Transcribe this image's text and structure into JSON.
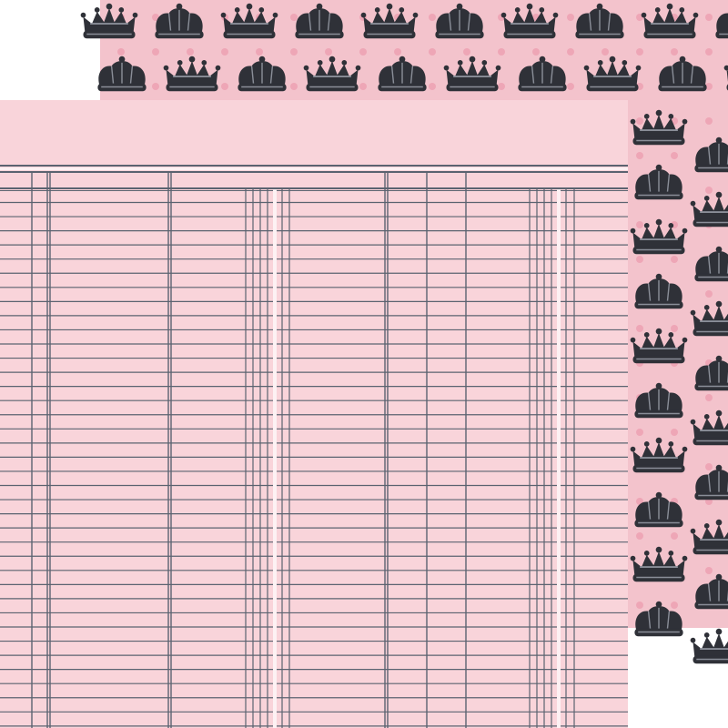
{
  "colors": {
    "page_background": "#ffffff",
    "crown_paper": "#f3c3cc",
    "crown_dots": "#eea6b6",
    "crown_ink": "#2f3138",
    "crown_highlight": "#8a8e98",
    "ledger_paper": "#f9d4da",
    "ledger_line": "#5b6370",
    "ledger_highlight": "#fdf1f3"
  },
  "icons": {
    "pattern_motif": "crown-icon"
  }
}
